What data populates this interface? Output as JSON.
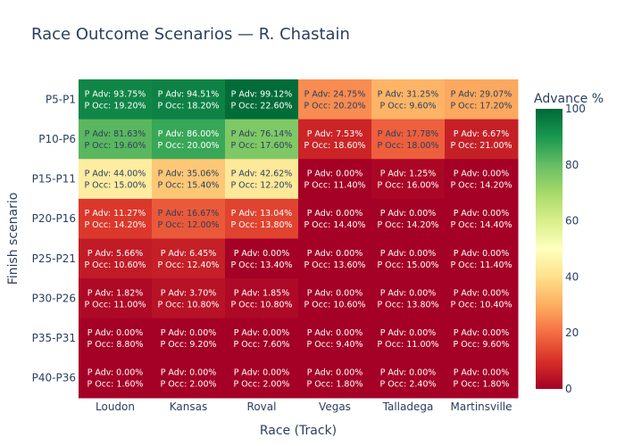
{
  "chart_data": {
    "type": "heatmap",
    "title": "Race Outcome Scenarios — R. Chastain",
    "xlabel": "Race (Track)",
    "ylabel": "Finish scenario",
    "x_categories": [
      "Loudon",
      "Kansas",
      "Roval",
      "Vegas",
      "Talladega",
      "Martinsville"
    ],
    "y_categories": [
      "P5-P1",
      "P10-P6",
      "P15-P11",
      "P20-P16",
      "P25-P21",
      "P30-P26",
      "P35-P31",
      "P40-P36"
    ],
    "advance_pct": [
      [
        93.75,
        94.51,
        99.12,
        24.75,
        31.25,
        29.07
      ],
      [
        81.63,
        86.0,
        76.14,
        7.53,
        17.78,
        6.67
      ],
      [
        44.0,
        35.06,
        42.62,
        0.0,
        1.25,
        0.0
      ],
      [
        11.27,
        16.67,
        13.04,
        0.0,
        0.0,
        0.0
      ],
      [
        5.66,
        6.45,
        0.0,
        0.0,
        0.0,
        0.0
      ],
      [
        1.82,
        3.7,
        1.85,
        0.0,
        0.0,
        0.0
      ],
      [
        0.0,
        0.0,
        0.0,
        0.0,
        0.0,
        0.0
      ],
      [
        0.0,
        0.0,
        0.0,
        0.0,
        0.0,
        0.0
      ]
    ],
    "occurrence_pct": [
      [
        19.2,
        18.2,
        22.6,
        20.2,
        9.6,
        17.2
      ],
      [
        19.6,
        20.0,
        17.6,
        18.6,
        18.0,
        21.0
      ],
      [
        15.0,
        15.4,
        12.2,
        11.4,
        16.0,
        14.2
      ],
      [
        14.2,
        12.0,
        13.8,
        14.4,
        14.2,
        14.4
      ],
      [
        10.6,
        12.4,
        13.4,
        13.6,
        15.0,
        11.4
      ],
      [
        11.0,
        10.8,
        10.8,
        10.6,
        13.8,
        10.4
      ],
      [
        8.8,
        9.2,
        7.6,
        9.4,
        11.0,
        9.6
      ],
      [
        1.6,
        2.0,
        2.0,
        1.8,
        2.4,
        1.8
      ]
    ],
    "cell_label_adv_prefix": "P Adv: ",
    "cell_label_occ_prefix": "P Occ: ",
    "colorbar": {
      "title": "Advance %",
      "range": [
        0,
        100
      ],
      "ticks": [
        "0",
        "20",
        "40",
        "60",
        "80",
        "100"
      ],
      "colorscale": "RdYlGn",
      "colors": [
        "#a50026",
        "#d73027",
        "#f46d43",
        "#fdae61",
        "#fee08b",
        "#ffffbf",
        "#d9ef8b",
        "#a6d96a",
        "#66bd63",
        "#1a9850",
        "#006837"
      ]
    }
  }
}
